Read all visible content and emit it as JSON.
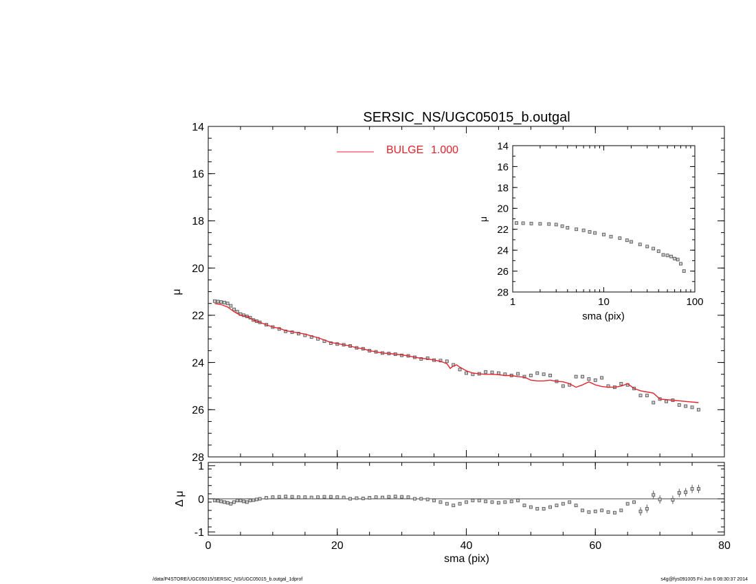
{
  "chart_data": [
    {
      "type": "scatter",
      "title": "SERSIC_NS/UGC05015_b.outgal",
      "xlabel": "",
      "ylabel": "μ",
      "xlim": [
        0,
        80
      ],
      "ylim": [
        28,
        14
      ],
      "y_inverted": true,
      "yticks": [
        14,
        16,
        18,
        20,
        22,
        24,
        26,
        28
      ],
      "legend": {
        "position": "top-center",
        "label": "BULGE",
        "value": "1.000",
        "color": "#e8202a"
      },
      "series": [
        {
          "name": "",
          "marker": "square",
          "color": "#555555",
          "x": [
            1.0,
            1.5,
            2.0,
            2.5,
            3.0,
            3.5,
            4.0,
            4.5,
            5.0,
            5.5,
            6.0,
            6.5,
            7.0,
            7.5,
            8.0,
            9.0,
            10.0,
            11.0,
            12.0,
            13.0,
            14.0,
            15.0,
            16.0,
            17.0,
            18.0,
            19.0,
            20.0,
            21.0,
            22.0,
            23.0,
            24.0,
            25.0,
            26.0,
            27.0,
            28.0,
            29.0,
            30.0,
            31.0,
            32.0,
            33.0,
            34.0,
            35.0,
            36.0,
            37.0,
            38.0,
            39.0,
            40.0,
            41.0,
            42.0,
            43.0,
            44.0,
            45.0,
            46.0,
            47.0,
            48.0,
            49.0,
            50.0,
            51.0,
            52.0,
            53.0,
            54.0,
            55.0,
            56.0,
            57.0,
            58.0,
            59.0,
            60.0,
            61.0,
            62.0,
            63.0,
            64.0,
            65.0,
            66.0,
            67.0,
            68.0,
            69.0,
            70.0,
            71.0,
            72.0,
            73.0,
            74.0,
            75.0,
            76.0
          ],
          "y": [
            21.4,
            21.42,
            21.44,
            21.46,
            21.5,
            21.6,
            21.75,
            21.85,
            21.95,
            22.0,
            22.05,
            22.1,
            22.2,
            22.25,
            22.3,
            22.4,
            22.5,
            22.58,
            22.68,
            22.72,
            22.78,
            22.85,
            22.92,
            23.0,
            23.1,
            23.18,
            23.22,
            23.25,
            23.3,
            23.38,
            23.42,
            23.5,
            23.55,
            23.6,
            23.62,
            23.65,
            23.7,
            23.72,
            23.78,
            23.85,
            23.82,
            23.9,
            23.92,
            23.95,
            24.1,
            24.3,
            24.45,
            24.5,
            24.48,
            24.4,
            24.42,
            24.45,
            24.5,
            24.55,
            24.48,
            24.6,
            24.55,
            24.45,
            24.5,
            24.55,
            24.8,
            25.0,
            24.95,
            24.6,
            24.6,
            24.7,
            24.75,
            24.65,
            25.0,
            25.05,
            24.9,
            24.95,
            25.1,
            25.4,
            25.4,
            25.7,
            25.55,
            25.65,
            25.6,
            25.8,
            25.85,
            25.9,
            26.0
          ]
        },
        {
          "name": "BULGE",
          "marker": "line",
          "color": "#e8202a",
          "x": [
            1.0,
            2.0,
            3.0,
            4.0,
            5.0,
            6.0,
            7.0,
            8.0,
            9.0,
            10.0,
            11.0,
            12.0,
            13.0,
            14.0,
            15.0,
            16.0,
            17.0,
            18.0,
            19.0,
            20.0,
            21.0,
            22.0,
            23.0,
            24.0,
            25.0,
            26.0,
            27.0,
            28.0,
            29.0,
            30.0,
            31.0,
            32.0,
            33.0,
            34.0,
            35.0,
            36.0,
            37.0,
            37.5,
            38.0,
            38.5,
            39.0,
            40.0,
            41.0,
            42.0,
            43.0,
            44.0,
            45.0,
            46.0,
            47.0,
            48.0,
            49.0,
            50.0,
            51.0,
            52.0,
            53.0,
            54.0,
            55.0,
            56.0,
            57.0,
            58.0,
            59.0,
            60.0,
            61.0,
            62.0,
            63.0,
            64.0,
            65.0,
            66.0,
            67.0,
            68.0,
            69.0,
            70.0,
            72.0,
            74.0,
            76.0
          ],
          "y": [
            21.5,
            21.55,
            21.65,
            21.85,
            22.0,
            22.05,
            22.2,
            22.3,
            22.4,
            22.5,
            22.55,
            22.65,
            22.7,
            22.75,
            22.8,
            22.88,
            22.95,
            23.05,
            23.15,
            23.2,
            23.25,
            23.3,
            23.38,
            23.42,
            23.5,
            23.55,
            23.6,
            23.62,
            23.65,
            23.68,
            23.72,
            23.78,
            23.82,
            23.85,
            23.9,
            23.95,
            24.05,
            24.25,
            24.15,
            24.1,
            24.2,
            24.35,
            24.45,
            24.48,
            24.5,
            24.5,
            24.52,
            24.55,
            24.55,
            24.6,
            24.62,
            24.75,
            24.78,
            24.78,
            24.75,
            24.8,
            24.82,
            24.9,
            25.05,
            24.95,
            24.82,
            24.95,
            25.02,
            25.05,
            25.05,
            25.0,
            24.9,
            25.1,
            25.2,
            25.25,
            25.3,
            25.55,
            25.6,
            25.65,
            25.7
          ]
        }
      ]
    },
    {
      "type": "scatter",
      "title": "",
      "xlabel": "sma (pix)",
      "ylabel": "μ",
      "x_scale": "log",
      "xlim": [
        1,
        100
      ],
      "xticks": [
        1,
        10,
        100
      ],
      "ylim": [
        28,
        14
      ],
      "y_inverted": true,
      "yticks": [
        14,
        16,
        18,
        20,
        22,
        24,
        26,
        28
      ],
      "legend": "none",
      "series": [
        {
          "name": "",
          "marker": "square",
          "color": "#555555",
          "x": [
            1.1,
            1.3,
            1.6,
            2.0,
            2.5,
            3.0,
            3.5,
            4.0,
            5.0,
            6.0,
            7.0,
            8.0,
            10.0,
            12.0,
            15.0,
            18.0,
            20.0,
            25.0,
            30.0,
            35.0,
            40.0,
            45.0,
            50.0,
            55.0,
            60.0,
            65.0,
            70.0,
            76.0
          ],
          "y": [
            21.4,
            21.42,
            21.45,
            21.48,
            21.5,
            21.55,
            21.7,
            21.85,
            22.0,
            22.1,
            22.25,
            22.35,
            22.5,
            22.7,
            22.85,
            23.05,
            23.2,
            23.45,
            23.65,
            23.85,
            24.1,
            24.45,
            24.5,
            24.6,
            24.8,
            24.9,
            25.3,
            26.0
          ]
        }
      ]
    },
    {
      "type": "scatter",
      "title": "",
      "xlabel": "sma (pix)",
      "ylabel": "Δ μ",
      "xlim": [
        0,
        80
      ],
      "xticks": [
        0,
        20,
        40,
        60,
        80
      ],
      "ylim": [
        -1.1,
        1.1
      ],
      "yticks": [
        -1,
        0,
        1
      ],
      "reference_line": 0,
      "legend": "none",
      "series": [
        {
          "name": "",
          "marker": "square-errorbar",
          "color": "#555555",
          "x": [
            1.0,
            1.5,
            2.0,
            2.5,
            3.0,
            3.5,
            4.0,
            4.5,
            5.0,
            5.5,
            6.0,
            6.5,
            7.0,
            7.5,
            8.0,
            9.0,
            10.0,
            11.0,
            12.0,
            13.0,
            14.0,
            15.0,
            16.0,
            17.0,
            18.0,
            19.0,
            20.0,
            21.0,
            22.0,
            23.0,
            24.0,
            25.0,
            26.0,
            27.0,
            28.0,
            29.0,
            30.0,
            31.0,
            32.0,
            33.0,
            34.0,
            35.0,
            36.0,
            37.0,
            38.0,
            39.0,
            40.0,
            41.0,
            42.0,
            43.0,
            44.0,
            45.0,
            46.0,
            47.0,
            48.0,
            49.0,
            50.0,
            51.0,
            52.0,
            53.0,
            54.0,
            55.0,
            56.0,
            57.0,
            58.0,
            59.0,
            60.0,
            61.0,
            62.0,
            63.0,
            64.0,
            65.0,
            66.0,
            67.0,
            68.0,
            69.0,
            70.0,
            72.0,
            73.0,
            74.0,
            75.0,
            76.0
          ],
          "y": [
            -0.05,
            -0.06,
            -0.08,
            -0.1,
            -0.12,
            -0.15,
            -0.1,
            -0.05,
            -0.05,
            -0.08,
            -0.1,
            -0.05,
            -0.04,
            -0.02,
            0.0,
            0.03,
            0.05,
            0.06,
            0.07,
            0.06,
            0.05,
            0.05,
            0.04,
            0.05,
            0.06,
            0.06,
            0.05,
            0.04,
            0.0,
            0.02,
            0.01,
            0.03,
            0.05,
            0.04,
            0.06,
            0.07,
            0.06,
            0.05,
            0.0,
            0.0,
            -0.02,
            -0.05,
            -0.1,
            -0.15,
            -0.2,
            -0.15,
            -0.1,
            -0.05,
            -0.05,
            -0.08,
            -0.1,
            -0.12,
            -0.1,
            -0.08,
            -0.05,
            -0.2,
            -0.25,
            -0.3,
            -0.3,
            -0.25,
            -0.2,
            -0.15,
            -0.1,
            -0.2,
            -0.35,
            -0.4,
            -0.38,
            -0.35,
            -0.4,
            -0.42,
            -0.35,
            -0.15,
            -0.1,
            -0.38,
            -0.3,
            0.12,
            -0.02,
            -0.03,
            0.18,
            0.2,
            0.3,
            0.3
          ]
        }
      ]
    }
  ],
  "footer": {
    "left": "/data/P4STORE/UGC05015/SERSIC_NS/UGC05015_b.outgal_1dprof",
    "right": "s4g@fys091005  Fri Jun  6 08:30:37 2014"
  }
}
